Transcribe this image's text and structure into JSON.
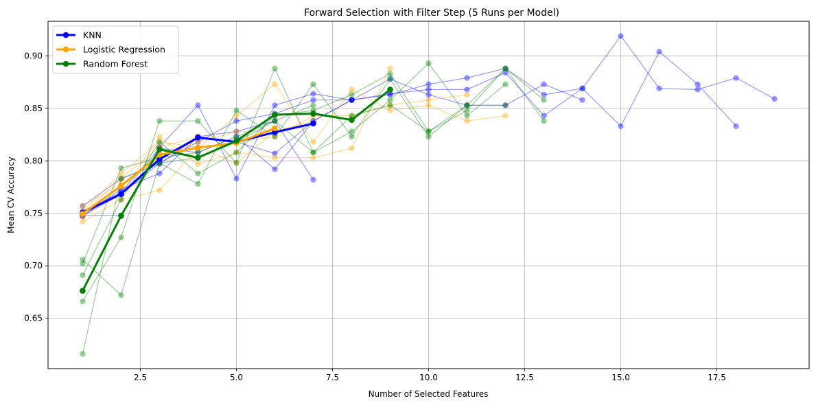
{
  "chart_data": {
    "type": "line",
    "title": "Forward Selection with Filter Step (5 Runs per Model)",
    "xlabel": "Number of Selected Features",
    "ylabel": "Mean CV Accuracy",
    "xlim": [
      0.1,
      19.9
    ],
    "ylim": [
      0.602,
      0.933
    ],
    "xticks": [
      2.5,
      5.0,
      7.5,
      10.0,
      12.5,
      15.0,
      17.5
    ],
    "xtick_labels": [
      "2.5",
      "5.0",
      "7.5",
      "10.0",
      "12.5",
      "15.0",
      "17.5"
    ],
    "yticks": [
      0.65,
      0.7,
      0.75,
      0.8,
      0.85,
      0.9
    ],
    "ytick_labels": [
      "0.65",
      "0.70",
      "0.75",
      "0.80",
      "0.85",
      "0.90"
    ],
    "grid": true,
    "legend_position": "top-left",
    "colors": {
      "KNN": "#0000ff",
      "Logistic Regression": "#ffa500",
      "Random Forest": "#008000"
    },
    "runs": [
      {
        "model": "KNN",
        "x": [
          1,
          2,
          3,
          4,
          5,
          6,
          7,
          8
        ],
        "y": [
          0.748,
          0.768,
          0.798,
          0.818,
          0.838,
          0.845,
          0.858,
          0.858
        ]
      },
      {
        "model": "KNN",
        "x": [
          1,
          2,
          3,
          4,
          5,
          6,
          7,
          8,
          9,
          10,
          11,
          12,
          13,
          14,
          15,
          16,
          17,
          18,
          19
        ],
        "y": [
          0.748,
          0.748,
          0.813,
          0.853,
          0.783,
          0.853,
          0.864,
          0.858,
          0.863,
          0.873,
          0.879,
          0.888,
          0.863,
          0.869,
          0.919,
          0.869,
          0.868,
          0.879,
          0.859
        ]
      },
      {
        "model": "KNN",
        "x": [
          1,
          2,
          3,
          4,
          5,
          6,
          7,
          8,
          9,
          10,
          11,
          12,
          13,
          14,
          15,
          16,
          17,
          18
        ],
        "y": [
          0.757,
          0.783,
          0.797,
          0.823,
          0.818,
          0.807,
          0.838,
          0.858,
          0.864,
          0.868,
          0.868,
          0.884,
          0.843,
          0.869,
          0.833,
          0.904,
          0.873,
          0.833
        ]
      },
      {
        "model": "KNN",
        "x": [
          1,
          2,
          3,
          4,
          5,
          6,
          7
        ],
        "y": [
          0.747,
          0.773,
          0.788,
          0.823,
          0.828,
          0.838,
          0.782
        ]
      },
      {
        "model": "KNN",
        "x": [
          1,
          2,
          3,
          4,
          5,
          6,
          7,
          8,
          9,
          10,
          11,
          12,
          13,
          14
        ],
        "y": [
          0.752,
          0.77,
          0.812,
          0.808,
          0.823,
          0.792,
          0.838,
          0.858,
          0.878,
          0.863,
          0.853,
          0.853,
          0.873,
          0.858
        ]
      },
      {
        "model": "Logistic Regression",
        "x": [
          1,
          2,
          3,
          4,
          5,
          6,
          7,
          8,
          9,
          10,
          11,
          12
        ],
        "y": [
          0.742,
          0.763,
          0.772,
          0.812,
          0.843,
          0.873,
          0.818,
          0.868,
          0.848,
          0.853,
          0.838,
          0.843
        ]
      },
      {
        "model": "Logistic Regression",
        "x": [
          1,
          2,
          3,
          4,
          5,
          6,
          7,
          8,
          9
        ],
        "y": [
          0.747,
          0.768,
          0.823,
          0.797,
          0.808,
          0.803,
          0.803,
          0.812,
          0.888
        ]
      },
      {
        "model": "Logistic Regression",
        "x": [
          1,
          2,
          3,
          4,
          5,
          6,
          7
        ],
        "y": [
          0.752,
          0.788,
          0.818,
          0.813,
          0.798,
          0.828,
          0.838
        ]
      },
      {
        "model": "Logistic Regression",
        "x": [
          1,
          2,
          3,
          4,
          5,
          6
        ],
        "y": [
          0.757,
          0.778,
          0.803,
          0.818,
          0.828,
          0.828
        ]
      },
      {
        "model": "Logistic Regression",
        "x": [
          1,
          2,
          3,
          4,
          5,
          6,
          7,
          8,
          9,
          10,
          11
        ],
        "y": [
          0.75,
          0.783,
          0.813,
          0.823,
          0.818,
          0.823,
          0.843,
          0.843,
          0.853,
          0.858,
          0.863
        ]
      },
      {
        "model": "Random Forest",
        "x": [
          1,
          2,
          3,
          4,
          5,
          6,
          7,
          8,
          9,
          10,
          11,
          12
        ],
        "y": [
          0.666,
          0.727,
          0.838,
          0.838,
          0.798,
          0.888,
          0.808,
          0.828,
          0.858,
          0.893,
          0.843,
          0.873
        ]
      },
      {
        "model": "Random Forest",
        "x": [
          1,
          2,
          3,
          4,
          5,
          6,
          7,
          8,
          9,
          10,
          11,
          12,
          13
        ],
        "y": [
          0.706,
          0.672,
          0.798,
          0.778,
          0.848,
          0.823,
          0.873,
          0.823,
          0.878,
          0.823,
          0.853,
          0.888,
          0.838
        ]
      },
      {
        "model": "Random Forest",
        "x": [
          1,
          2,
          3,
          4,
          5,
          6,
          7,
          8,
          9,
          10,
          11,
          12,
          13
        ],
        "y": [
          0.691,
          0.763,
          0.818,
          0.788,
          0.808,
          0.843,
          0.848,
          0.863,
          0.883,
          0.828,
          0.848,
          0.888,
          0.858
        ]
      },
      {
        "model": "Random Forest",
        "x": [
          1,
          2,
          3,
          4,
          5,
          6,
          7
        ],
        "y": [
          0.702,
          0.793,
          0.803,
          0.808,
          0.823,
          0.838,
          0.853
        ]
      },
      {
        "model": "Random Forest",
        "x": [
          1,
          2,
          3,
          4,
          5,
          6,
          7,
          8,
          9,
          10,
          11,
          12
        ],
        "y": [
          0.616,
          0.783,
          0.798,
          0.803,
          0.818,
          0.838,
          0.808,
          0.843,
          0.853,
          0.828,
          0.853,
          0.853
        ]
      }
    ],
    "series": [
      {
        "name": "KNN",
        "color": "#0000ff",
        "x": [
          1,
          2,
          3,
          4,
          5,
          6,
          7
        ],
        "y": [
          0.7506,
          0.7684,
          0.8016,
          0.8222,
          0.818,
          0.8272,
          0.8356
        ]
      },
      {
        "name": "Logistic Regression",
        "color": "#ffa500",
        "x": [
          1,
          2,
          3,
          4,
          5,
          6
        ],
        "y": [
          0.7496,
          0.776,
          0.8058,
          0.8126,
          0.817,
          0.831
        ]
      },
      {
        "name": "Random Forest",
        "color": "#008000",
        "x": [
          1,
          2,
          3,
          4,
          5,
          6,
          7,
          8,
          9
        ],
        "y": [
          0.6762,
          0.7476,
          0.811,
          0.803,
          0.819,
          0.844,
          0.845,
          0.839,
          0.868
        ]
      }
    ]
  }
}
